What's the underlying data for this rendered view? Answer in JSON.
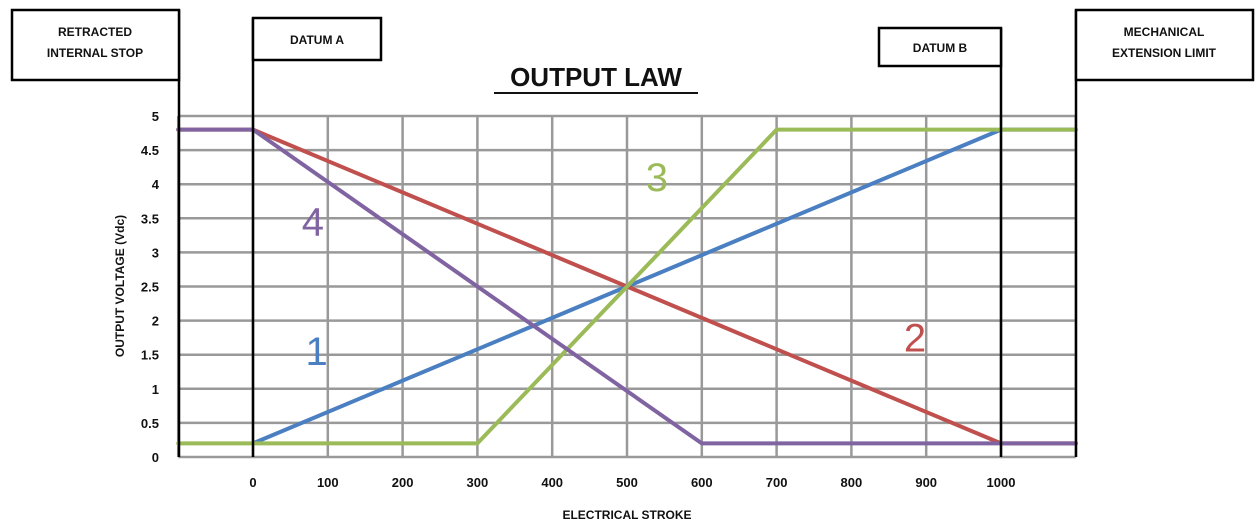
{
  "chart_data": {
    "type": "line",
    "title": "OUTPUT LAW",
    "xlabel": "ELECTRICAL STROKE",
    "ylabel": "OUTPUT VOLTAGE (Vdc)",
    "xlim": [
      -100,
      1100
    ],
    "ylim": [
      0,
      5
    ],
    "grid": true,
    "x_ticks": [
      "0",
      "100",
      "200",
      "300",
      "400",
      "500",
      "600",
      "700",
      "800",
      "900",
      "1000"
    ],
    "y_ticks": [
      "0",
      "0.5",
      "1",
      "1.5",
      "2",
      "2.5",
      "3",
      "3.5",
      "4",
      "4.5",
      "5"
    ],
    "boundary_labels": {
      "retracted": [
        "RETRACTED",
        "INTERNAL STOP"
      ],
      "datum_a": "DATUM A",
      "datum_b": "DATUM B",
      "mechanical": [
        "MECHANICAL",
        "EXTENSION LIMIT"
      ]
    },
    "series": [
      {
        "name": "1",
        "color": "#4A7FC1",
        "x": [
          0,
          1000,
          1100
        ],
        "y": [
          0.2,
          4.8,
          4.8
        ]
      },
      {
        "name": "2",
        "color": "#C0504D",
        "x": [
          -100,
          0,
          1000,
          1100
        ],
        "y": [
          4.8,
          4.8,
          0.2,
          0.2
        ]
      },
      {
        "name": "3",
        "color": "#9BBB59",
        "x": [
          -100,
          300,
          700,
          1100
        ],
        "y": [
          0.2,
          0.2,
          4.8,
          4.8
        ]
      },
      {
        "name": "4",
        "color": "#8064A2",
        "x": [
          -100,
          0,
          600,
          1100
        ],
        "y": [
          4.8,
          4.8,
          0.2,
          0.2
        ]
      }
    ],
    "series_labels": [
      {
        "text": "1",
        "x": 85,
        "y": 1.35,
        "color": "#4A7FC1"
      },
      {
        "text": "2",
        "x": 885,
        "y": 1.55,
        "color": "#C0504D"
      },
      {
        "text": "3",
        "x": 540,
        "y": 3.9,
        "color": "#9BBB59"
      },
      {
        "text": "4",
        "x": 80,
        "y": 3.25,
        "color": "#8064A2"
      }
    ]
  }
}
